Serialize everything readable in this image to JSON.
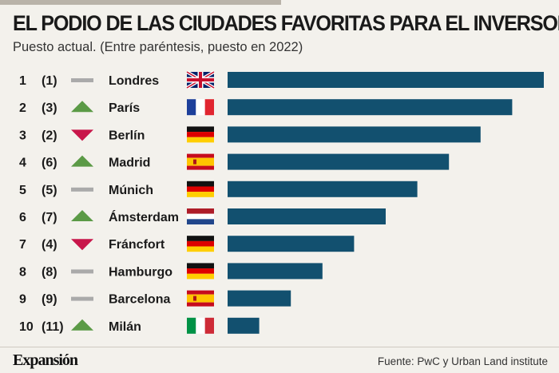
{
  "title": "EL PODIO DE LAS CIUDADES FAVORITAS PARA EL INVERSOR",
  "subtitle": "Puesto actual. (Entre paréntesis, puesto en 2022)",
  "brand": "Expansión",
  "source": "Fuente: PwC y Urban Land institute",
  "colors": {
    "bar": "#12506f",
    "up": "#5b9a46",
    "down": "#c8164a",
    "same": "#aaaaaa"
  },
  "chart_data": {
    "type": "bar",
    "title": "EL PODIO DE LAS CIUDADES FAVORITAS PARA EL INVERSOR",
    "subtitle": "Puesto actual. (Entre paréntesis, puesto en 2022)",
    "xlabel": "",
    "ylabel": "",
    "categories": [
      "Londres",
      "París",
      "Berlín",
      "Madrid",
      "Múnich",
      "Ámsterdam",
      "Fráncfort",
      "Hamburgo",
      "Barcelona",
      "Milán"
    ],
    "rank": [
      "1",
      "2",
      "3",
      "4",
      "5",
      "6",
      "7",
      "8",
      "9",
      "10"
    ],
    "rank_2022": [
      "(1)",
      "(3)",
      "(2)",
      "(6)",
      "(5)",
      "(7)",
      "(4)",
      "(8)",
      "(9)",
      "(11)"
    ],
    "trend": [
      "same",
      "up",
      "down",
      "up",
      "same",
      "up",
      "down",
      "same",
      "same",
      "up"
    ],
    "flags": [
      "uk-flag",
      "france-flag",
      "germany-flag",
      "spain-flag",
      "germany-flag",
      "netherlands-flag",
      "germany-flag",
      "germany-flag",
      "spain-flag",
      "italy-flag"
    ],
    "values": [
      10,
      9,
      8,
      7,
      6,
      5,
      4,
      3,
      2,
      1
    ],
    "xlim": [
      0,
      10
    ]
  }
}
